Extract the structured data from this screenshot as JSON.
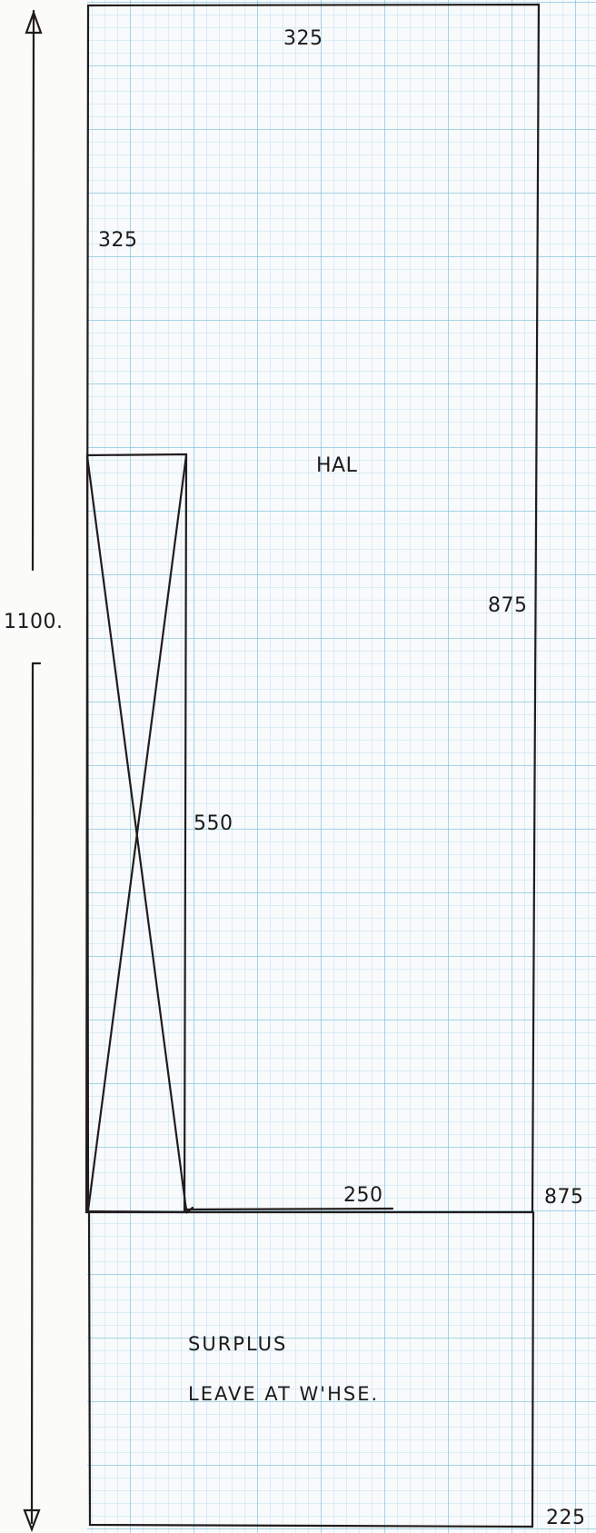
{
  "diagram": {
    "labels": {
      "top_width": "325",
      "left_offset": "325",
      "centre_label": "HAL",
      "right_height": "875",
      "overall_height": "1100.",
      "inner_height": "550",
      "inner_bottom_width": "250",
      "bottom_right_dim": "875",
      "lower_dim": "225"
    },
    "note": {
      "line1": "SURPLUS",
      "line2": "LEAVE AT W'HSE."
    }
  }
}
